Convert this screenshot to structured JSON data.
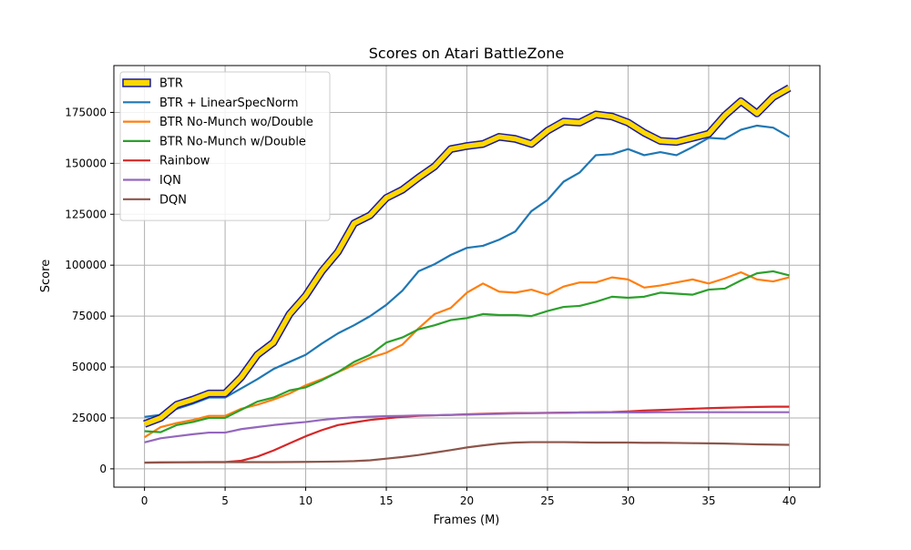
{
  "chart_data": {
    "type": "line",
    "title": "Scores on Atari BattleZone",
    "xlabel": "Frames (M)",
    "ylabel": "Score",
    "xlim": [
      -1.9,
      41.9
    ],
    "ylim": [
      -9000,
      198000
    ],
    "x_ticks": [
      0,
      5,
      10,
      15,
      20,
      25,
      30,
      35,
      40
    ],
    "x_tick_labels": [
      "0",
      "5",
      "10",
      "15",
      "20",
      "25",
      "30",
      "35",
      "40"
    ],
    "y_ticks": [
      0,
      25000,
      50000,
      75000,
      100000,
      125000,
      150000,
      175000
    ],
    "y_tick_labels": [
      "0",
      "25000",
      "50000",
      "75000",
      "100000",
      "125000",
      "150000",
      "175000"
    ],
    "grid": true,
    "legend_position": "upper-left",
    "x": [
      0,
      1,
      2,
      3,
      4,
      5,
      6,
      7,
      8,
      9,
      10,
      11,
      12,
      13,
      14,
      15,
      16,
      17,
      18,
      19,
      20,
      21,
      22,
      23,
      24,
      25,
      26,
      27,
      28,
      29,
      30,
      31,
      32,
      33,
      34,
      35,
      36,
      37,
      38,
      39,
      40
    ],
    "series": [
      {
        "name": "BTR",
        "color": "#FFD700",
        "edge_color": "#1a1aa0",
        "style": "highlight",
        "values": [
          22000,
          25000,
          31500,
          34000,
          37000,
          37000,
          45000,
          56000,
          62000,
          76000,
          85000,
          97000,
          106500,
          120500,
          124500,
          133000,
          137000,
          143000,
          148500,
          157000,
          158500,
          159500,
          163000,
          162000,
          159500,
          166000,
          170500,
          170000,
          174000,
          173000,
          170000,
          165000,
          161000,
          160500,
          162500,
          164500,
          173500,
          180500,
          174500,
          182500,
          187000
        ]
      },
      {
        "name": "BTR + LinearSpecNorm",
        "color": "#1f77b4",
        "values": [
          25500,
          26500,
          29500,
          32000,
          35000,
          35000,
          39500,
          44000,
          49000,
          52500,
          56000,
          61500,
          66500,
          70500,
          75000,
          80500,
          87500,
          97000,
          100500,
          105000,
          108500,
          109500,
          112500,
          116500,
          126500,
          132000,
          141000,
          145500,
          154000,
          154500,
          157000,
          154000,
          155500,
          154000,
          158000,
          162500,
          162000,
          166500,
          168500,
          167500,
          163000
        ]
      },
      {
        "name": "BTR No-Munch wo/Double",
        "color": "#ff7f0e",
        "values": [
          15500,
          20500,
          22500,
          24000,
          26000,
          26000,
          29500,
          31500,
          34000,
          37000,
          41000,
          44000,
          47500,
          51000,
          54500,
          57000,
          61000,
          69000,
          76000,
          79000,
          86500,
          91000,
          87000,
          86500,
          88000,
          85500,
          89500,
          91500,
          91500,
          94000,
          93000,
          89000,
          90000,
          91500,
          93000,
          91000,
          93500,
          96500,
          93000,
          92000,
          94000
        ]
      },
      {
        "name": "BTR No-Munch w/Double",
        "color": "#2ca02c",
        "values": [
          18500,
          18000,
          21500,
          23000,
          25000,
          25000,
          29000,
          33000,
          35000,
          38500,
          40000,
          43500,
          47500,
          52500,
          56000,
          62000,
          64500,
          68500,
          70500,
          73000,
          74000,
          76000,
          75500,
          75500,
          75000,
          77500,
          79500,
          80000,
          82000,
          84500,
          84000,
          84500,
          86500,
          86000,
          85500,
          88000,
          88500,
          92500,
          96000,
          97000,
          95000
        ]
      },
      {
        "name": "Rainbow",
        "color": "#d62728",
        "values": [
          3000,
          3100,
          3200,
          3200,
          3300,
          3300,
          4000,
          6000,
          9000,
          12500,
          16000,
          19000,
          21500,
          22800,
          24000,
          24800,
          25500,
          26000,
          26300,
          26500,
          26800,
          27000,
          27200,
          27400,
          27400,
          27500,
          27600,
          27700,
          27800,
          27900,
          28200,
          28600,
          28900,
          29200,
          29500,
          29800,
          30000,
          30200,
          30400,
          30500,
          30500
        ]
      },
      {
        "name": "IQN",
        "color": "#9467bd",
        "values": [
          13000,
          15000,
          16000,
          17000,
          17800,
          17800,
          19500,
          20500,
          21500,
          22300,
          23000,
          24000,
          24800,
          25300,
          25600,
          25900,
          26000,
          26200,
          26300,
          26500,
          26600,
          26800,
          27000,
          27200,
          27300,
          27400,
          27500,
          27600,
          27600,
          27700,
          27700,
          27700,
          27800,
          27800,
          27800,
          27800,
          27800,
          27800,
          27800,
          27800,
          27800
        ]
      },
      {
        "name": "DQN",
        "color": "#8c564b",
        "values": [
          3100,
          3200,
          3200,
          3300,
          3300,
          3300,
          3300,
          3300,
          3300,
          3350,
          3400,
          3500,
          3600,
          3800,
          4200,
          5000,
          5800,
          6800,
          8000,
          9200,
          10500,
          11500,
          12400,
          12900,
          13100,
          13100,
          13100,
          13000,
          12900,
          12900,
          12900,
          12800,
          12800,
          12700,
          12600,
          12500,
          12400,
          12200,
          12000,
          11900,
          11800
        ]
      }
    ]
  }
}
